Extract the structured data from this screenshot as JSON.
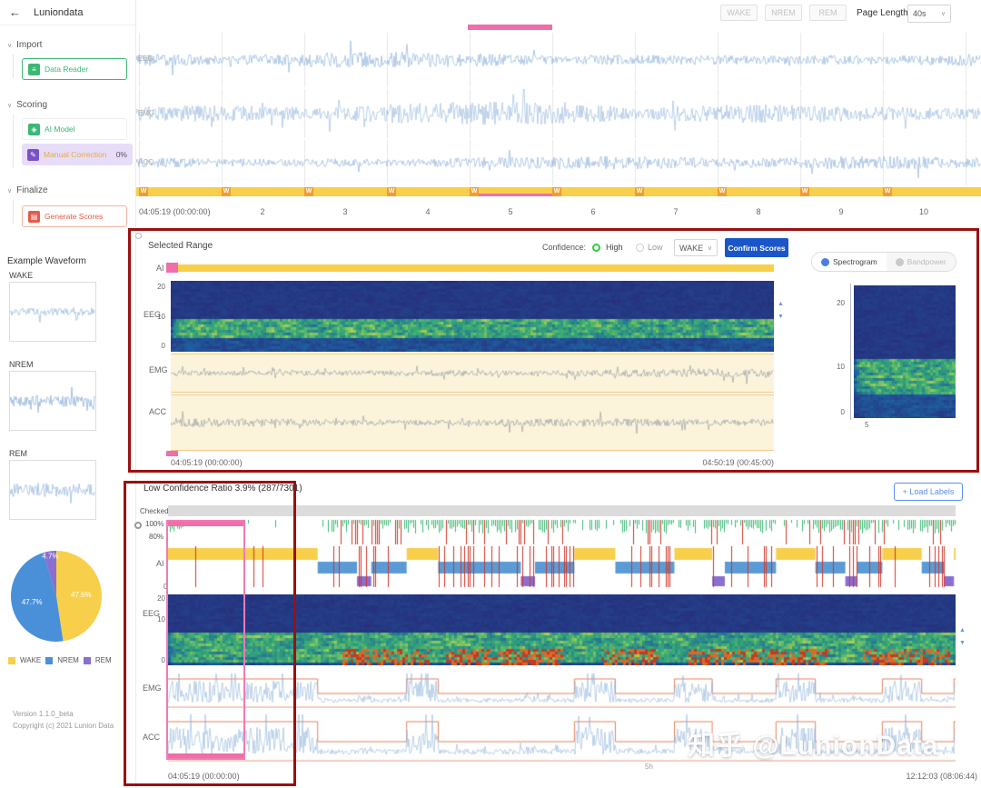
{
  "app": {
    "title": "Luniondata"
  },
  "icons": {
    "back": "←",
    "chevron": "∨",
    "data_reader": "≡",
    "ai_model": "◈",
    "manual_correction": "✎",
    "generate_scores": "▤"
  },
  "sidebar": {
    "sections": [
      {
        "label": "Import"
      },
      {
        "label": "Scoring"
      },
      {
        "label": "Finalize"
      }
    ],
    "items": {
      "data_reader": "Data Reader",
      "ai_model": "AI Model",
      "manual_correction": "Manual Correction",
      "manual_correction_badge": "0%",
      "generate_scores": "Generate Scores"
    },
    "example_title": "Example Waveform",
    "example_labels": [
      "WAKE",
      "NREM",
      "REM"
    ],
    "version": "Version 1.1.0_beta",
    "copyright": "Copyright (c) 2021 Lunion Data"
  },
  "header": {
    "stage_buttons": [
      "WAKE",
      "NREM",
      "REM"
    ],
    "page_length_label": "Page Length",
    "page_length_value": "40s"
  },
  "top_view": {
    "channels": [
      "EEG",
      "EMG",
      "ACC"
    ],
    "epoch_mark": "W",
    "time_start": "04:05:19 (00:00:00)",
    "ticks": [
      "2",
      "3",
      "4",
      "5",
      "6",
      "7",
      "8",
      "9",
      "10"
    ]
  },
  "middle_panel": {
    "title": "Selected Range",
    "confidence_label": "Confidence:",
    "confidence_options": [
      "High",
      "Low"
    ],
    "stage_select_value": "WAKE",
    "confirm_button": "Confirm Scores",
    "ai_label": "AI",
    "eeg_label": "EEG",
    "emg_label": "EMG",
    "acc_label": "ACC",
    "eeg_yticks": [
      "20",
      "10",
      "0"
    ],
    "time_start": "04:05:19 (00:00:00)",
    "time_end": "04:50:19 (00:45:00)",
    "tabs": [
      "Spectrogram",
      "Bandpower"
    ],
    "mini_yticks": [
      "20",
      "10",
      "0"
    ],
    "mini_xtick": "5"
  },
  "bottom_panel": {
    "low_confidence_text": "Low Confidence Ratio 3.9% (287/7301)",
    "load_labels_button": "+ Load Labels",
    "checked_label": "Checked",
    "conf_yticks": [
      "100%",
      "80%"
    ],
    "ai_label": "AI",
    "ai_ytick": "0",
    "eeg_label": "EEG",
    "eeg_yticks": [
      "20",
      "10",
      "0"
    ],
    "emg_label": "EMG",
    "acc_label": "ACC",
    "time_start": "04:05:19 (00:00:00)",
    "time_mid": "5h",
    "time_end": "12:12:03 (08:06:44)"
  },
  "chart_data": {
    "type": "pie",
    "labels": [
      "WAKE",
      "NREM",
      "REM"
    ],
    "values": [
      47.6,
      47.7,
      4.7
    ],
    "data_labels": [
      "47.6%",
      "47.7%",
      "4.7%"
    ],
    "colors": [
      "#f7cf4a",
      "#4a90d9",
      "#8a6fd1"
    ],
    "legend_position": "bottom"
  },
  "watermark": "知乎 @LunionData",
  "colors": {
    "accent_blue": "#1a56c9",
    "selection_pink": "#f06eaa",
    "annotation_red": "#9b1010",
    "hypnogram_wake": "#f7cf4a",
    "hypnogram_nrem": "#5b9bd5",
    "hypnogram_rem": "#8a6fd1",
    "waveform_blue": "#8fb3dc",
    "confidence_green": "#3bb873",
    "low_confidence_red": "#d03428"
  }
}
